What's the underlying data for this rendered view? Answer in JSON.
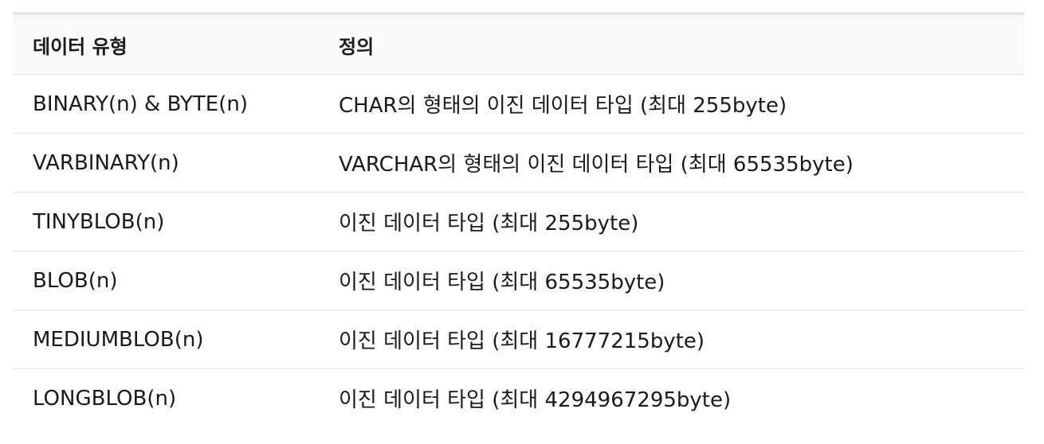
{
  "table": {
    "headers": [
      "데이터 유형",
      "정의"
    ],
    "rows": [
      [
        "BINARY(n) & BYTE(n)",
        "CHAR의 형태의 이진 데이터 타입 (최대 255byte)"
      ],
      [
        "VARBINARY(n)",
        "VARCHAR의 형태의 이진 데이터 타입 (최대 65535byte)"
      ],
      [
        "TINYBLOB(n)",
        "이진 데이터 타입 (최대 255byte)"
      ],
      [
        "BLOB(n)",
        "이진 데이터 타입 (최대 65535byte)"
      ],
      [
        "MEDIUMBLOB(n)",
        "이진 데이터 타입 (최대 16777215byte)"
      ],
      [
        "LONGBLOB(n)",
        "이진 데이터 타입 (최대 4294967295byte)"
      ]
    ]
  }
}
